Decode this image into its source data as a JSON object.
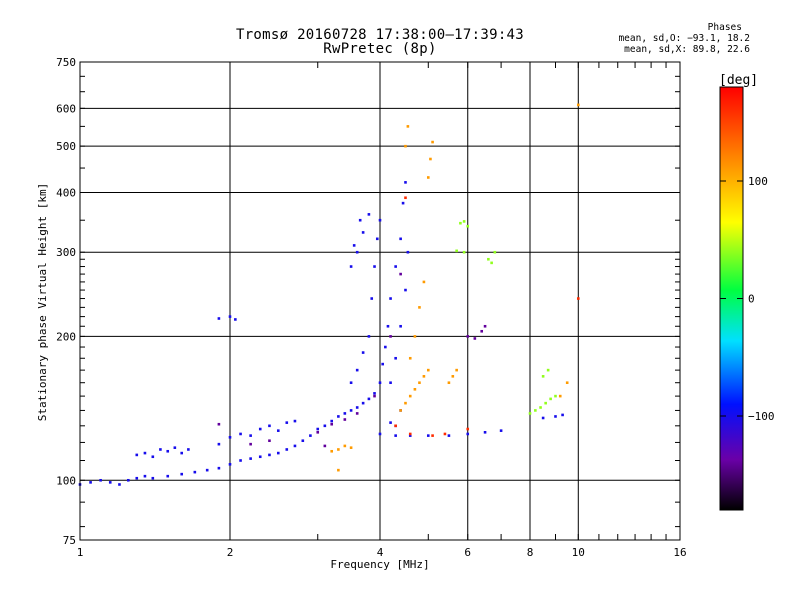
{
  "header": {
    "title_line1": "Tromsø 20160728 17:38:00–17:39:43",
    "title_line2": "RwPretec (8p)",
    "phases_heading": "Phases",
    "phases_o": "mean, sd,O: −93.1, 18.2",
    "phases_x": "mean, sd,X:  89.8, 22.6"
  },
  "chart_data": {
    "type": "scatter",
    "xlabel": "Frequency [MHz]",
    "ylabel": "Stationary phase Virtual Height [km]",
    "x_scale": "log",
    "y_scale": "log",
    "xlim": [
      1,
      16
    ],
    "ylim": [
      75,
      750
    ],
    "x_ticks": [
      1,
      2,
      4,
      6,
      8,
      10,
      16
    ],
    "x_tick_labels": [
      "1",
      "2",
      "4",
      "6",
      "8",
      "10",
      "16"
    ],
    "y_ticks": [
      75,
      100,
      200,
      300,
      400,
      500,
      600,
      750
    ],
    "y_tick_labels": [
      "75",
      "100",
      "200",
      "300",
      "400",
      "500",
      "600",
      "750"
    ],
    "grid": true,
    "colorbar": {
      "label": "[deg]",
      "range": [
        -180,
        180
      ],
      "ticks": [
        100,
        0,
        -100
      ],
      "tick_labels": [
        "100",
        "0",
        "−100"
      ]
    },
    "series": [
      {
        "phase": -100,
        "points": [
          [
            1.0,
            98
          ],
          [
            1.05,
            99
          ],
          [
            1.1,
            100
          ],
          [
            1.15,
            99
          ],
          [
            1.2,
            98
          ],
          [
            1.25,
            100
          ],
          [
            1.3,
            101
          ],
          [
            1.35,
            102
          ],
          [
            1.4,
            101
          ],
          [
            1.5,
            102
          ],
          [
            1.6,
            103
          ],
          [
            1.7,
            104
          ],
          [
            1.8,
            105
          ],
          [
            1.9,
            106
          ],
          [
            2.0,
            108
          ],
          [
            2.1,
            110
          ],
          [
            2.2,
            111
          ],
          [
            2.3,
            112
          ],
          [
            2.4,
            113
          ],
          [
            2.5,
            114
          ],
          [
            2.6,
            116
          ],
          [
            2.7,
            118
          ],
          [
            2.8,
            121
          ],
          [
            2.9,
            124
          ],
          [
            3.0,
            128
          ],
          [
            3.1,
            130
          ],
          [
            3.2,
            133
          ],
          [
            3.3,
            136
          ],
          [
            3.4,
            138
          ],
          [
            3.5,
            140
          ],
          [
            3.6,
            142
          ],
          [
            3.7,
            145
          ],
          [
            3.8,
            148
          ],
          [
            3.9,
            152
          ],
          [
            4.0,
            160
          ],
          [
            4.05,
            175
          ],
          [
            4.1,
            190
          ],
          [
            4.15,
            210
          ],
          [
            4.2,
            240
          ],
          [
            4.3,
            280
          ],
          [
            4.4,
            320
          ],
          [
            4.45,
            380
          ],
          [
            4.5,
            420
          ],
          [
            1.3,
            113
          ],
          [
            1.35,
            114
          ],
          [
            1.4,
            112
          ],
          [
            1.45,
            116
          ],
          [
            1.5,
            115
          ],
          [
            1.55,
            117
          ],
          [
            1.6,
            114
          ],
          [
            1.65,
            116
          ],
          [
            1.9,
            119
          ],
          [
            2.0,
            123
          ],
          [
            2.1,
            125
          ],
          [
            2.2,
            124
          ],
          [
            2.3,
            128
          ],
          [
            2.4,
            130
          ],
          [
            2.5,
            127
          ],
          [
            2.6,
            132
          ],
          [
            2.7,
            133
          ],
          [
            3.5,
            160
          ],
          [
            3.6,
            170
          ],
          [
            3.7,
            185
          ],
          [
            3.8,
            200
          ],
          [
            3.85,
            240
          ],
          [
            3.9,
            280
          ],
          [
            3.95,
            320
          ],
          [
            4.0,
            350
          ],
          [
            3.6,
            300
          ],
          [
            3.7,
            330
          ],
          [
            3.8,
            360
          ],
          [
            3.5,
            280
          ],
          [
            3.55,
            310
          ],
          [
            3.65,
            350
          ],
          [
            4.0,
            125
          ],
          [
            4.3,
            124
          ],
          [
            4.6,
            124
          ],
          [
            5.0,
            124
          ],
          [
            5.5,
            124
          ],
          [
            6.0,
            125
          ],
          [
            6.5,
            126
          ],
          [
            7.0,
            127
          ],
          [
            1.9,
            218
          ],
          [
            2.0,
            220
          ],
          [
            2.05,
            217
          ],
          [
            8.5,
            135
          ],
          [
            9.0,
            136
          ],
          [
            9.3,
            137
          ],
          [
            4.2,
            160
          ],
          [
            4.3,
            180
          ],
          [
            4.4,
            210
          ],
          [
            4.5,
            250
          ],
          [
            4.55,
            300
          ],
          [
            4.4,
            140
          ],
          [
            4.3,
            130
          ],
          [
            4.2,
            132
          ]
        ]
      },
      {
        "phase": -140,
        "points": [
          [
            3.0,
            126
          ],
          [
            3.2,
            131
          ],
          [
            3.4,
            134
          ],
          [
            3.6,
            138
          ],
          [
            3.9,
            150
          ],
          [
            4.2,
            200
          ],
          [
            4.4,
            270
          ],
          [
            6.0,
            200
          ],
          [
            6.2,
            198
          ],
          [
            6.4,
            205
          ],
          [
            6.5,
            210
          ],
          [
            2.2,
            119
          ],
          [
            2.4,
            121
          ],
          [
            1.9,
            131
          ],
          [
            3.1,
            118
          ]
        ]
      },
      {
        "phase": 110,
        "points": [
          [
            3.2,
            115
          ],
          [
            3.3,
            116
          ],
          [
            3.4,
            118
          ],
          [
            3.5,
            117
          ],
          [
            3.3,
            105
          ],
          [
            4.4,
            140
          ],
          [
            4.5,
            145
          ],
          [
            4.6,
            150
          ],
          [
            4.7,
            155
          ],
          [
            4.8,
            160
          ],
          [
            4.9,
            165
          ],
          [
            5.0,
            170
          ],
          [
            4.6,
            180
          ],
          [
            4.7,
            200
          ],
          [
            4.8,
            230
          ],
          [
            4.9,
            260
          ],
          [
            5.0,
            430
          ],
          [
            5.05,
            470
          ],
          [
            5.1,
            510
          ],
          [
            4.5,
            500
          ],
          [
            4.55,
            550
          ],
          [
            5.5,
            160
          ],
          [
            5.6,
            165
          ],
          [
            5.7,
            170
          ],
          [
            9.2,
            150
          ],
          [
            9.5,
            160
          ],
          [
            10.0,
            610
          ]
        ]
      },
      {
        "phase": 40,
        "points": [
          [
            5.8,
            345
          ],
          [
            5.9,
            348
          ],
          [
            6.0,
            340
          ],
          [
            6.6,
            290
          ],
          [
            6.7,
            285
          ],
          [
            6.8,
            300
          ],
          [
            5.7,
            302
          ],
          [
            5.9,
            300
          ],
          [
            8.0,
            138
          ],
          [
            8.2,
            140
          ],
          [
            8.4,
            142
          ],
          [
            8.6,
            145
          ],
          [
            8.8,
            148
          ],
          [
            9.0,
            150
          ],
          [
            8.5,
            165
          ],
          [
            8.7,
            170
          ]
        ]
      },
      {
        "phase": 160,
        "points": [
          [
            4.3,
            130
          ],
          [
            4.6,
            125
          ],
          [
            5.1,
            124
          ],
          [
            5.4,
            125
          ],
          [
            6.0,
            128
          ],
          [
            4.5,
            390
          ],
          [
            10.0,
            240
          ]
        ]
      }
    ]
  }
}
